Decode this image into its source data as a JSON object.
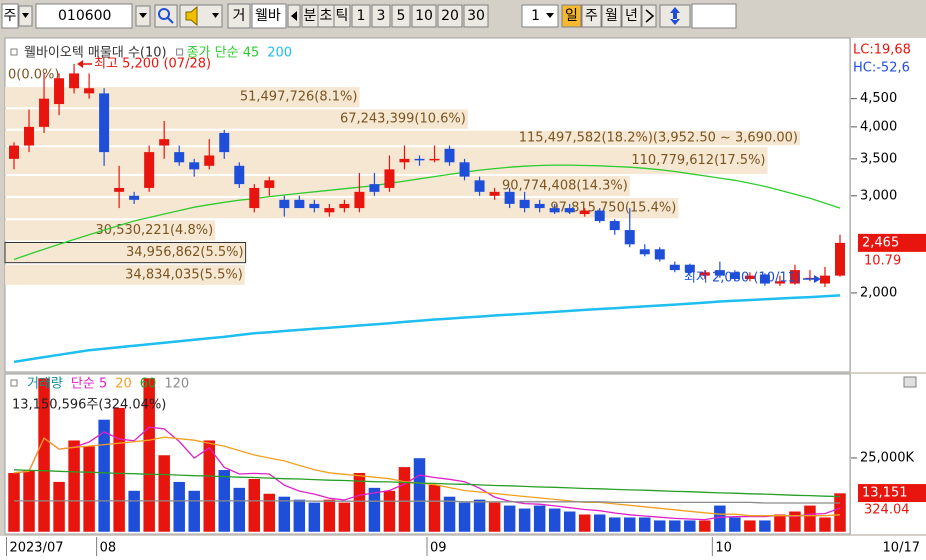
{
  "toolbar": {
    "market": "주",
    "code": "010600",
    "mode": "거",
    "name": "웰바",
    "units": [
      "분",
      "초",
      "틱"
    ],
    "intervals": [
      "1",
      "3",
      "5",
      "10",
      "20",
      "30"
    ],
    "count": "1",
    "periods": [
      "일",
      "주",
      "월",
      "년"
    ]
  },
  "price_panel": {
    "title": "웰바이오텍 매물대 수(10)",
    "log": true,
    "ylim": [
      1450,
      5700
    ],
    "yticks": [
      {
        "value": 4500,
        "label": "4,500"
      },
      {
        "value": 4000,
        "label": "4,000"
      },
      {
        "value": 3500,
        "label": "3,500"
      },
      {
        "value": 3000,
        "label": "3,000"
      },
      {
        "value": 2000,
        "label": "2,000"
      }
    ],
    "lc_label": "LC:19,68",
    "hc_label": "HC:-52,6",
    "last_price": {
      "value": 2465,
      "label": "2,465"
    },
    "last_change": "10.79",
    "high_note": "최고 5,200 (07/28)",
    "low_note": "최저 2,060 (10/11)",
    "up_color": "#e8150e",
    "down_color": "#1f4fd8",
    "candles": [
      [
        3500,
        3750,
        3350,
        3700
      ],
      [
        3700,
        4300,
        3600,
        4000
      ],
      [
        4000,
        5000,
        3900,
        4500
      ],
      [
        4400,
        5000,
        4200,
        4900
      ],
      [
        4700,
        5200,
        4600,
        5000
      ],
      [
        4600,
        5000,
        4500,
        4700
      ],
      [
        4600,
        4700,
        3400,
        3600
      ],
      [
        3050,
        3400,
        2850,
        3100
      ],
      [
        3000,
        3050,
        2900,
        2950
      ],
      [
        3100,
        3700,
        3050,
        3600
      ],
      [
        3700,
        4100,
        3500,
        3800
      ],
      [
        3600,
        3700,
        3400,
        3450
      ],
      [
        3450,
        3500,
        3250,
        3350
      ],
      [
        3400,
        3800,
        3350,
        3550
      ],
      [
        3900,
        3950,
        3500,
        3600
      ],
      [
        3400,
        3450,
        3100,
        3150
      ],
      [
        2850,
        3150,
        2800,
        3100
      ],
      [
        3100,
        3250,
        3000,
        3200
      ],
      [
        2950,
        3000,
        2750,
        2850
      ],
      [
        2950,
        3000,
        2850,
        2850
      ],
      [
        2900,
        2950,
        2800,
        2850
      ],
      [
        2800,
        2900,
        2750,
        2850
      ],
      [
        2850,
        2950,
        2800,
        2900
      ],
      [
        2850,
        3300,
        2800,
        3050
      ],
      [
        3150,
        3300,
        3000,
        3050
      ],
      [
        3100,
        3550,
        3050,
        3350
      ],
      [
        3450,
        3700,
        3350,
        3500
      ],
      [
        3500,
        3550,
        3400,
        3480
      ],
      [
        3480,
        3700,
        3450,
        3500
      ],
      [
        3650,
        3700,
        3400,
        3450
      ],
      [
        3450,
        3500,
        3200,
        3250
      ],
      [
        3200,
        3250,
        3000,
        3050
      ],
      [
        3000,
        3100,
        2950,
        3050
      ],
      [
        3050,
        3100,
        2850,
        2900
      ],
      [
        2950,
        3050,
        2800,
        2850
      ],
      [
        2900,
        2950,
        2800,
        2850
      ],
      [
        2850,
        2900,
        2780,
        2800
      ],
      [
        2850,
        2900,
        2780,
        2800
      ],
      [
        2780,
        2850,
        2750,
        2820
      ],
      [
        2820,
        2850,
        2680,
        2700
      ],
      [
        2700,
        2720,
        2550,
        2600
      ],
      [
        2600,
        2850,
        2420,
        2450
      ],
      [
        2400,
        2450,
        2330,
        2350
      ],
      [
        2400,
        2420,
        2280,
        2300
      ],
      [
        2250,
        2280,
        2180,
        2200
      ],
      [
        2250,
        2260,
        2160,
        2180
      ],
      [
        2150,
        2200,
        2120,
        2180
      ],
      [
        2200,
        2280,
        2130,
        2150
      ],
      [
        2180,
        2200,
        2100,
        2120
      ],
      [
        2120,
        2180,
        2100,
        2150
      ],
      [
        2160,
        2170,
        2060,
        2080
      ],
      [
        2080,
        2150,
        2060,
        2100
      ],
      [
        2080,
        2250,
        2070,
        2200
      ],
      [
        2120,
        2200,
        2100,
        2130
      ],
      [
        2080,
        2230,
        2050,
        2150
      ],
      [
        2150,
        2550,
        2140,
        2465
      ]
    ],
    "ma": [
      {
        "name": "종가 단순 45",
        "color": "#2ecc2e",
        "values": [
          2300,
          2350,
          2400,
          2450,
          2500,
          2550,
          2600,
          2650,
          2700,
          2740,
          2780,
          2820,
          2860,
          2890,
          2920,
          2945,
          2965,
          2990,
          3010,
          3030,
          3050,
          3070,
          3090,
          3110,
          3130,
          3160,
          3190,
          3220,
          3250,
          3280,
          3310,
          3340,
          3360,
          3380,
          3395,
          3405,
          3410,
          3410,
          3405,
          3400,
          3390,
          3380,
          3365,
          3345,
          3320,
          3290,
          3260,
          3230,
          3200,
          3160,
          3120,
          3070,
          3020,
          2970,
          2910,
          2850
        ]
      },
      {
        "name": "200",
        "color": "#1ebef0",
        "values": [
          1500,
          1515,
          1530,
          1545,
          1560,
          1575,
          1585,
          1595,
          1605,
          1615,
          1625,
          1635,
          1645,
          1655,
          1665,
          1678,
          1690,
          1698,
          1706,
          1714,
          1722,
          1730,
          1738,
          1746,
          1754,
          1762,
          1772,
          1781,
          1790,
          1797,
          1805,
          1812,
          1820,
          1827,
          1834,
          1841,
          1848,
          1856,
          1863,
          1870,
          1877,
          1884,
          1891,
          1898,
          1905,
          1913,
          1921,
          1930,
          1936,
          1942,
          1948,
          1954,
          1960,
          1966,
          1973,
          1980
        ]
      }
    ],
    "bands": [
      {
        "low": 4741,
        "high": 5200,
        "volume": 0,
        "label": "0(0.0%)"
      },
      {
        "low": 4322,
        "high": 4741,
        "volume": 51497726,
        "label": "51,497,726(8.1%)"
      },
      {
        "low": 3952.5,
        "high": 4322,
        "volume": 67243399,
        "label": "67,243,399(10.6%)"
      },
      {
        "low": 3690,
        "high": 3952.5,
        "volume": 115497582,
        "label": "115,497,582(18.2%)(3,952.50 ~ 3,690.00)"
      },
      {
        "low": 3273,
        "high": 3690,
        "volume": 110779612,
        "label": "110,779,612(17.5%)"
      },
      {
        "low": 2984,
        "high": 3273,
        "volume": 90774408,
        "label": "90,774,408(14.3%)"
      },
      {
        "low": 2720,
        "high": 2984,
        "volume": 97815750,
        "label": "97,815,750(15.4%)"
      },
      {
        "low": 2479,
        "high": 2720,
        "volume": 30530221,
        "label": "30,530,221(4.8%)"
      },
      {
        "low": 2260,
        "high": 2479,
        "volume": 34956862,
        "label": "34,956,862(5.5%)",
        "boxed": true
      },
      {
        "low": 2060,
        "high": 2260,
        "volume": 34834035,
        "label": "34,834,035(5.5%)"
      }
    ]
  },
  "volume_panel": {
    "name": "거래량",
    "color": "#0f8f8f",
    "info": "13,150,596주(324.04%)",
    "ylim": [
      0,
      52000
    ],
    "yticks": [
      {
        "value": 25000,
        "label": "25,000K"
      }
    ],
    "values": [
      20000,
      21000,
      54000,
      17000,
      31000,
      29000,
      38000,
      42000,
      14000,
      54000,
      26000,
      17000,
      14000,
      31000,
      21000,
      15000,
      18000,
      13000,
      12000,
      11000,
      10000,
      11000,
      10000,
      20000,
      15000,
      14000,
      22000,
      25000,
      16000,
      12000,
      10000,
      11000,
      10000,
      9000,
      8000,
      9000,
      8000,
      7000,
      6000,
      6000,
      5000,
      5000,
      5000,
      4000,
      4000,
      4000,
      4000,
      9000,
      5000,
      4000,
      4000,
      6000,
      7000,
      9000,
      5000,
      13150.596
    ],
    "last_label": "13,151",
    "last_ratio": "324.04",
    "ma": [
      {
        "name": "단순 5",
        "color": "#e020c8",
        "values": [
          20000,
          20500,
          31700,
          28000,
          28600,
          30400,
          33800,
          31400,
          30800,
          35400,
          34800,
          30600,
          25000,
          28400,
          21800,
          19600,
          19800,
          19600,
          15800,
          13800,
          12800,
          11400,
          10800,
          12400,
          13200,
          14000,
          16200,
          19200,
          18400,
          17800,
          17000,
          14800,
          11800,
          10400,
          9600,
          9400,
          8800,
          8200,
          7600,
          7200,
          6400,
          5800,
          5400,
          5000,
          4600,
          4400,
          4200,
          5000,
          5200,
          5200,
          5200,
          5600,
          5200,
          6000,
          6200,
          8030
        ]
      },
      {
        "name": "20",
        "color": "#f0a020",
        "values": [
          20000,
          20500,
          31700,
          28000,
          28600,
          29000,
          29500,
          30000,
          30500,
          31000,
          32000,
          31500,
          31000,
          30000,
          29000,
          27500,
          26000,
          25000,
          24000,
          22500,
          21000,
          20000,
          19500,
          19000,
          18500,
          18000,
          17000,
          16500,
          16000,
          15000,
          14000,
          13500,
          13000,
          12500,
          12000,
          11500,
          11000,
          10500,
          10000,
          10000,
          9500,
          9000,
          8500,
          8000,
          7500,
          7000,
          6500,
          6000,
          6000,
          5500,
          5500,
          5500,
          5500,
          5500,
          5500,
          5800
        ]
      },
      {
        "name": "60",
        "color": "#28a028",
        "values": [
          21000,
          20800,
          20700,
          20500,
          20300,
          20200,
          20000,
          19800,
          19700,
          19500,
          19400,
          19200,
          19000,
          18900,
          18700,
          18500,
          18400,
          18200,
          18000,
          17900,
          17700,
          17500,
          17400,
          17200,
          17000,
          16900,
          16700,
          16500,
          16400,
          16200,
          16100,
          15900,
          15700,
          15600,
          15400,
          15200,
          15100,
          14900,
          14700,
          14600,
          14400,
          14200,
          14100,
          13900,
          13700,
          13600,
          13400,
          13200,
          13100,
          12900,
          12800,
          12600,
          12400,
          12300,
          12100,
          12000
        ]
      },
      {
        "name": "120",
        "color": "#8c8c8c",
        "values": [
          10500,
          10500,
          10500,
          10500,
          10500,
          10500,
          10500,
          10500,
          10500,
          10500,
          10500,
          10500,
          10500,
          10500,
          10500,
          10500,
          10500,
          10500,
          10500,
          10500,
          10400,
          10400,
          10400,
          10400,
          10400,
          10400,
          10400,
          10400,
          10400,
          10400,
          10200,
          10200,
          10200,
          10200,
          10200,
          10200,
          10200,
          10200,
          10200,
          10200,
          10000,
          10000,
          10000,
          10000,
          10000,
          10000,
          10000,
          10000,
          10000,
          10000,
          9800,
          9800,
          9800,
          9800,
          9800,
          9800
        ]
      }
    ]
  },
  "x_axis": {
    "categories": [
      "2023/07",
      null,
      null,
      null,
      null,
      null,
      "08",
      null,
      null,
      null,
      null,
      null,
      null,
      null,
      null,
      null,
      null,
      null,
      null,
      null,
      null,
      null,
      null,
      null,
      null,
      null,
      null,
      null,
      "09",
      null,
      null,
      null,
      null,
      null,
      null,
      null,
      null,
      null,
      null,
      null,
      null,
      null,
      null,
      null,
      null,
      null,
      null,
      "10",
      null,
      null,
      null,
      null,
      null,
      null,
      null,
      null
    ],
    "end_label": "10/17"
  }
}
